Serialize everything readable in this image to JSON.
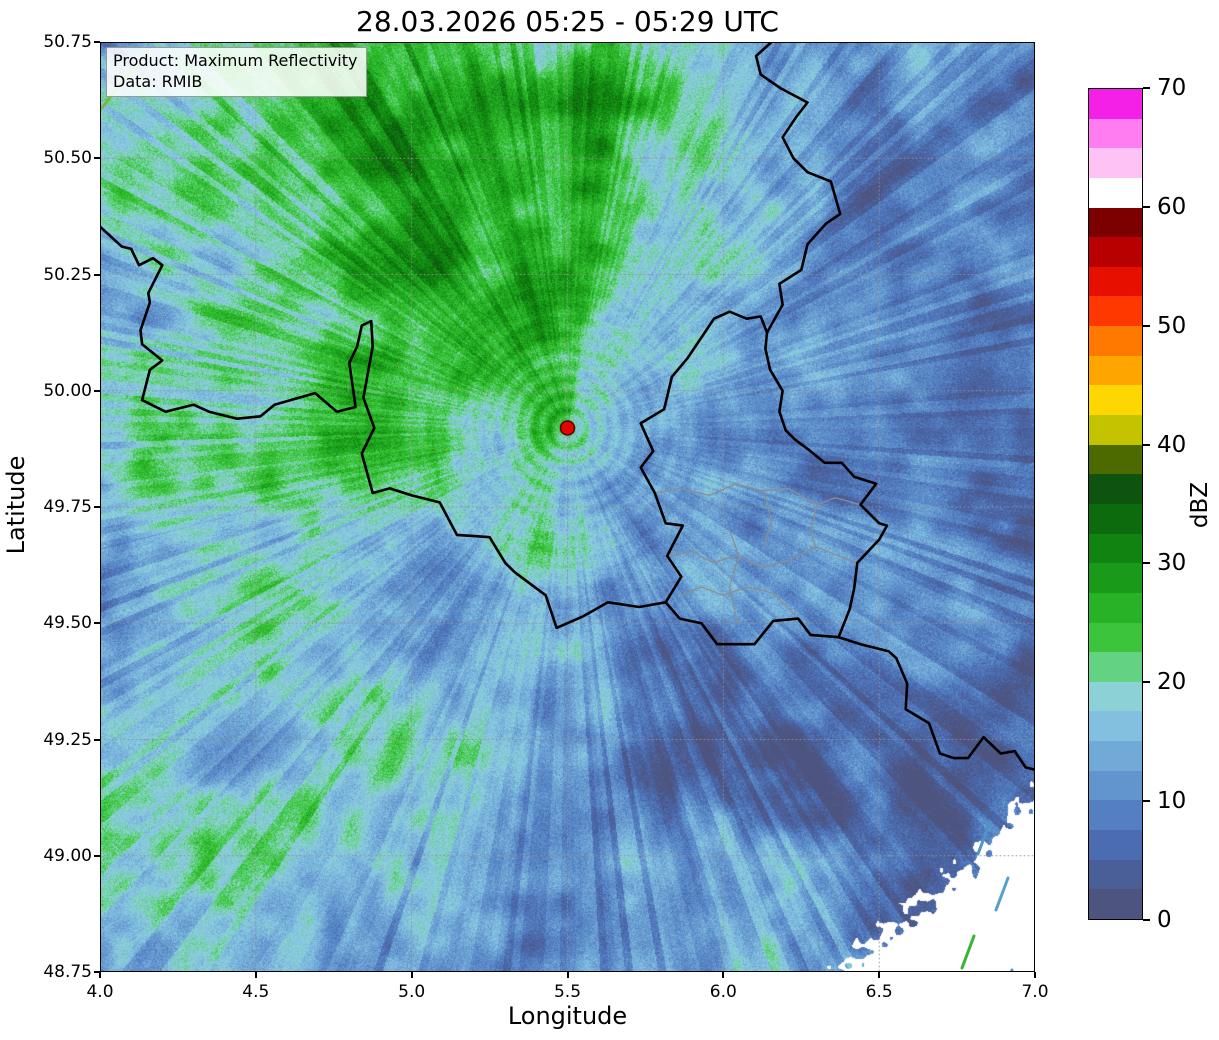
{
  "title": "28.03.2026 05:25 - 05:29 UTC",
  "info_box": {
    "product": "Product: Maximum Reflectivity",
    "source": "Data: RMIB"
  },
  "axes": {
    "xlabel": "Longitude",
    "ylabel": "Latitude",
    "x_ticks": [
      "4.0",
      "4.5",
      "5.0",
      "5.5",
      "6.0",
      "6.5",
      "7.0"
    ],
    "y_ticks": [
      "50.75",
      "50.50",
      "50.25",
      "50.00",
      "49.75",
      "49.50",
      "49.25",
      "49.00",
      "48.75"
    ]
  },
  "colorbar": {
    "label": "dBZ",
    "min": 0,
    "max": 70,
    "ticks": [
      0,
      10,
      20,
      30,
      40,
      50,
      60,
      70
    ],
    "segment_step_dbz": 2.5,
    "colors_bottom_to_top": [
      "#4e5480",
      "#4a5e97",
      "#4b6cb0",
      "#5480c2",
      "#6294cd",
      "#72aad7",
      "#83c0e0",
      "#8bd1d6",
      "#63d282",
      "#3cc53c",
      "#27b227",
      "#199a19",
      "#108310",
      "#0c6b0c",
      "#0e540e",
      "#4c6a00",
      "#c3c300",
      "#ffd700",
      "#ffa500",
      "#ff7800",
      "#ff3800",
      "#e60f00",
      "#b80000",
      "#7d0000",
      "#ffffff",
      "#ffc2f5",
      "#ff7df0",
      "#f520e8"
    ]
  },
  "chart_data": {
    "type": "heatmap",
    "title": "28.03.2026 05:25 - 05:29 UTC",
    "product": "Maximum Reflectivity",
    "data_source": "RMIB",
    "xlabel": "Longitude",
    "ylabel": "Latitude",
    "xlim": [
      4.0,
      7.0
    ],
    "ylim": [
      48.75,
      50.75
    ],
    "grid": true,
    "colorbar_label": "dBZ",
    "colorbar_range": [
      0,
      70
    ],
    "colorbar_ticks": [
      0,
      10,
      20,
      30,
      40,
      50,
      60,
      70
    ],
    "radar_site": {
      "lon": 5.5,
      "lat": 49.92,
      "marker": "red-dot"
    },
    "coverage_gap": "white no-data region beyond composite range in the south-east corner",
    "qualitative": "Widespread stratiform precipitation; greens 20-35 dBZ over the north-west and centre, cyan 10-20 dBZ around the radar and south, blues 0-15 dBZ over the east and south-east, scattered clutter specks 40-55 dBZ west and north-east of the radar, concentric ring artifacts around the radar site",
    "field_model": {
      "base_dbz": 15,
      "blobs": [
        {
          "cx": 0.28,
          "cy": 0.1,
          "sx": 0.3,
          "sy": 0.22,
          "amp": 9
        },
        {
          "cx": 0.42,
          "cy": 0.27,
          "sx": 0.18,
          "sy": 0.14,
          "amp": 7
        },
        {
          "cx": 0.15,
          "cy": 0.42,
          "sx": 0.18,
          "sy": 0.15,
          "amp": 5
        },
        {
          "cx": 0.2,
          "cy": 0.75,
          "sx": 0.22,
          "sy": 0.18,
          "amp": 4
        },
        {
          "cx": 0.65,
          "cy": 0.52,
          "sx": 0.12,
          "sy": 0.1,
          "amp": 4
        },
        {
          "cx": 0.57,
          "cy": 0.06,
          "sx": 0.12,
          "sy": 0.1,
          "amp": 4
        },
        {
          "cx": 0.46,
          "cy": 0.55,
          "sx": 0.05,
          "sy": 0.08,
          "amp": 6
        },
        {
          "cx": 0.88,
          "cy": 0.22,
          "sx": 0.22,
          "sy": 0.25,
          "amp": -10
        },
        {
          "cx": 0.67,
          "cy": 0.63,
          "sx": 0.12,
          "sy": 0.12,
          "amp": -5
        },
        {
          "cx": 0.88,
          "cy": 0.75,
          "sx": 0.2,
          "sy": 0.2,
          "amp": -6
        },
        {
          "cx": 0.52,
          "cy": 0.88,
          "sx": 0.25,
          "sy": 0.15,
          "amp": -4
        },
        {
          "cx": 0.97,
          "cy": 0.47,
          "sx": 0.1,
          "sy": 0.18,
          "amp": -5
        }
      ]
    }
  },
  "map": {
    "country_borders": [
      {
        "name": "france-belgium",
        "points": [
          [
            4.0,
            50.353
          ],
          [
            4.07,
            50.31
          ],
          [
            4.1,
            50.305
          ],
          [
            4.125,
            50.27
          ],
          [
            4.17,
            50.285
          ],
          [
            4.2,
            50.27
          ],
          [
            4.155,
            50.21
          ],
          [
            4.16,
            50.19
          ],
          [
            4.13,
            50.13
          ],
          [
            4.135,
            50.1
          ],
          [
            4.2,
            50.065
          ],
          [
            4.16,
            50.045
          ],
          [
            4.135,
            49.98
          ],
          [
            4.21,
            49.955
          ],
          [
            4.3,
            49.97
          ],
          [
            4.35,
            49.955
          ],
          [
            4.44,
            49.94
          ],
          [
            4.515,
            49.945
          ],
          [
            4.56,
            49.97
          ],
          [
            4.69,
            49.995
          ],
          [
            4.76,
            49.955
          ],
          [
            4.82,
            49.965
          ],
          [
            4.8,
            50.06
          ],
          [
            4.825,
            50.095
          ],
          [
            4.84,
            50.14
          ],
          [
            4.87,
            50.15
          ],
          [
            4.875,
            50.095
          ],
          [
            4.845,
            49.985
          ],
          [
            4.88,
            49.92
          ],
          [
            4.84,
            49.865
          ],
          [
            4.875,
            49.78
          ],
          [
            4.93,
            49.79
          ],
          [
            5.0,
            49.775
          ],
          [
            5.09,
            49.76
          ],
          [
            5.145,
            49.69
          ],
          [
            5.25,
            49.685
          ],
          [
            5.3,
            49.63
          ],
          [
            5.33,
            49.61
          ],
          [
            5.43,
            49.56
          ],
          [
            5.465,
            49.49
          ],
          [
            5.55,
            49.515
          ],
          [
            5.63,
            49.545
          ],
          [
            5.73,
            49.535
          ],
          [
            5.815,
            49.545
          ]
        ]
      },
      {
        "name": "france-luxembourg",
        "points": [
          [
            5.815,
            49.545
          ],
          [
            5.86,
            49.51
          ],
          [
            5.93,
            49.5
          ],
          [
            5.98,
            49.455
          ],
          [
            6.1,
            49.455
          ],
          [
            6.16,
            49.505
          ],
          [
            6.24,
            49.51
          ],
          [
            6.28,
            49.475
          ],
          [
            6.37,
            49.47
          ]
        ]
      },
      {
        "name": "luxembourg-germany",
        "points": [
          [
            6.37,
            49.47
          ],
          [
            6.405,
            49.53
          ],
          [
            6.42,
            49.575
          ],
          [
            6.43,
            49.63
          ],
          [
            6.5,
            49.68
          ],
          [
            6.525,
            49.71
          ],
          [
            6.5,
            49.715
          ],
          [
            6.44,
            49.755
          ],
          [
            6.49,
            49.8
          ],
          [
            6.42,
            49.815
          ],
          [
            6.38,
            49.845
          ],
          [
            6.325,
            49.845
          ],
          [
            6.28,
            49.87
          ],
          [
            6.23,
            49.895
          ],
          [
            6.2,
            49.915
          ],
          [
            6.18,
            49.955
          ],
          [
            6.19,
            50.0
          ],
          [
            6.15,
            50.045
          ],
          [
            6.135,
            50.09
          ],
          [
            6.14,
            50.125
          ]
        ]
      },
      {
        "name": "belgium-luxembourg",
        "points": [
          [
            5.815,
            49.545
          ],
          [
            5.865,
            49.6
          ],
          [
            5.82,
            49.645
          ],
          [
            5.87,
            49.71
          ],
          [
            5.815,
            49.715
          ],
          [
            5.78,
            49.78
          ],
          [
            5.735,
            49.835
          ],
          [
            5.775,
            49.87
          ],
          [
            5.735,
            49.93
          ],
          [
            5.81,
            49.96
          ],
          [
            5.835,
            50.03
          ],
          [
            5.885,
            50.07
          ],
          [
            5.935,
            50.12
          ],
          [
            5.97,
            50.155
          ],
          [
            6.02,
            50.17
          ],
          [
            6.075,
            50.155
          ],
          [
            6.12,
            50.16
          ],
          [
            6.14,
            50.125
          ]
        ]
      },
      {
        "name": "belgium-germany",
        "points": [
          [
            6.14,
            50.125
          ],
          [
            6.19,
            50.185
          ],
          [
            6.18,
            50.23
          ],
          [
            6.25,
            50.26
          ],
          [
            6.27,
            50.315
          ],
          [
            6.33,
            50.36
          ],
          [
            6.375,
            50.38
          ],
          [
            6.345,
            50.45
          ],
          [
            6.27,
            50.47
          ],
          [
            6.225,
            50.5
          ],
          [
            6.19,
            50.545
          ],
          [
            6.235,
            50.59
          ],
          [
            6.27,
            50.62
          ],
          [
            6.185,
            50.65
          ],
          [
            6.12,
            50.68
          ],
          [
            6.105,
            50.72
          ],
          [
            6.155,
            50.75
          ]
        ]
      },
      {
        "name": "france-germany",
        "points": [
          [
            6.37,
            49.47
          ],
          [
            6.44,
            49.455
          ],
          [
            6.53,
            49.44
          ],
          [
            6.555,
            49.425
          ],
          [
            6.59,
            49.37
          ],
          [
            6.585,
            49.315
          ],
          [
            6.66,
            49.285
          ],
          [
            6.695,
            49.22
          ],
          [
            6.74,
            49.21
          ],
          [
            6.785,
            49.21
          ],
          [
            6.835,
            49.255
          ],
          [
            6.89,
            49.22
          ],
          [
            6.935,
            49.225
          ],
          [
            6.97,
            49.19
          ],
          [
            7.0,
            49.185
          ]
        ]
      }
    ],
    "district_borders": [
      {
        "name": "luxembourg-internal-1",
        "points": [
          [
            5.82,
            49.645
          ],
          [
            5.9,
            49.655
          ],
          [
            5.965,
            49.63
          ],
          [
            6.045,
            49.645
          ],
          [
            6.125,
            49.62
          ],
          [
            6.21,
            49.635
          ],
          [
            6.295,
            49.665
          ],
          [
            6.37,
            49.645
          ],
          [
            6.43,
            49.63
          ]
        ]
      },
      {
        "name": "luxembourg-internal-2",
        "points": [
          [
            5.865,
            49.56
          ],
          [
            5.93,
            49.578
          ],
          [
            6.0,
            49.56
          ],
          [
            6.075,
            49.578
          ],
          [
            6.16,
            49.565
          ],
          [
            6.24,
            49.51
          ]
        ]
      },
      {
        "name": "luxembourg-internal-3",
        "points": [
          [
            6.02,
            49.7
          ],
          [
            6.05,
            49.645
          ],
          [
            6.02,
            49.578
          ],
          [
            6.045,
            49.5
          ]
        ]
      },
      {
        "name": "luxembourg-internal-4",
        "points": [
          [
            5.78,
            49.78
          ],
          [
            5.862,
            49.79
          ],
          [
            5.955,
            49.775
          ],
          [
            6.04,
            49.8
          ],
          [
            6.125,
            49.785
          ],
          [
            6.21,
            49.79
          ],
          [
            6.3,
            49.755
          ],
          [
            6.36,
            49.77
          ],
          [
            6.44,
            49.755
          ]
        ]
      },
      {
        "name": "luxembourg-internal-5",
        "points": [
          [
            6.13,
            49.785
          ],
          [
            6.155,
            49.72
          ],
          [
            6.13,
            49.665
          ]
        ]
      },
      {
        "name": "luxembourg-internal-6",
        "points": [
          [
            6.3,
            49.755
          ],
          [
            6.28,
            49.7
          ],
          [
            6.295,
            49.665
          ]
        ]
      }
    ],
    "no_data_streaks": [
      [
        878,
        812,
        890,
        780,
        "#4f94c8"
      ],
      [
        896,
        868,
        908,
        836,
        "#57a0ce"
      ],
      [
        862,
        926,
        874,
        894,
        "#35b535"
      ],
      [
        902,
        958,
        912,
        928,
        "#4f94c8"
      ]
    ]
  }
}
